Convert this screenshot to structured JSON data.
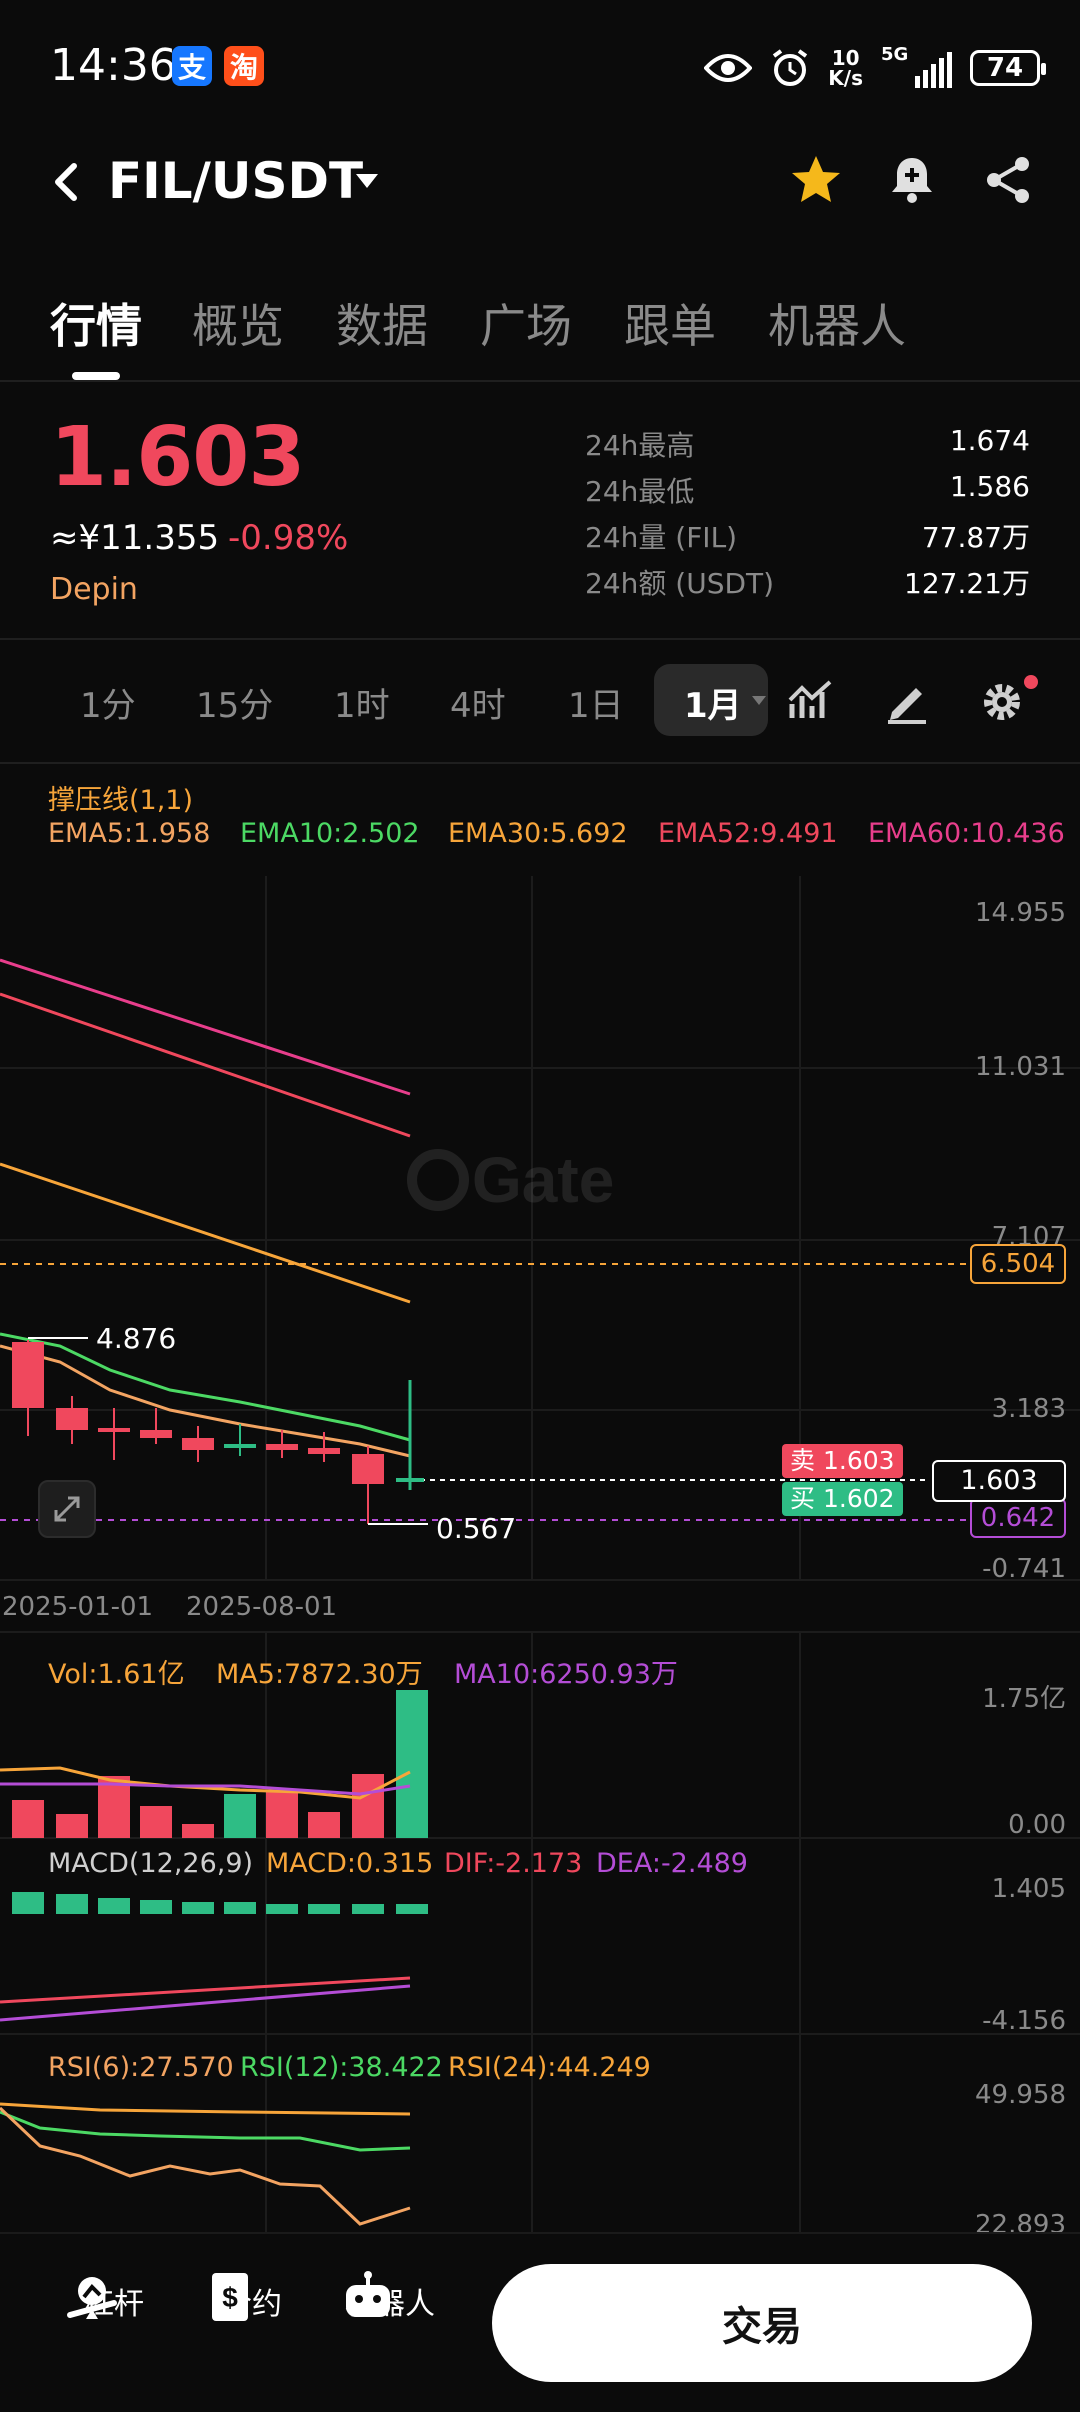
{
  "status_bar": {
    "time": "14:36",
    "net_speed_top": "10",
    "net_speed_bottom": "K/s",
    "network": "5G",
    "battery": "74"
  },
  "header": {
    "pair": "FIL/USDT"
  },
  "tabs": [
    "行情",
    "概览",
    "数据",
    "广场",
    "跟单",
    "机器人"
  ],
  "ticker": {
    "price": "1.603",
    "fiat": "≈¥11.355",
    "change": "-0.98%",
    "tag": "Depin",
    "stats": [
      {
        "label": "24h最高",
        "value": "1.674"
      },
      {
        "label": "24h最低",
        "value": "1.586"
      },
      {
        "label": "24h量 (FIL)",
        "value": "77.87万"
      },
      {
        "label": "24h额 (USDT)",
        "value": "127.21万"
      }
    ]
  },
  "intervals": [
    "1分",
    "15分",
    "1时",
    "4时",
    "1日"
  ],
  "interval_active": "1月",
  "main_chart": {
    "indicator_title": "撑压线(1,1)",
    "ema": [
      {
        "label": "EMA5:1.958",
        "color": "#f3a462"
      },
      {
        "label": "EMA10:2.502",
        "color": "#4cd964"
      },
      {
        "label": "EMA30:5.692",
        "color": "#f7a53a"
      },
      {
        "label": "EMA52:9.491",
        "color": "#f0485d"
      },
      {
        "label": "EMA60:10.436",
        "color": "#e83e8c"
      }
    ],
    "y_ticks": [
      "14.955",
      "11.031",
      "7.107",
      "3.183",
      "-0.741"
    ],
    "x_ticks": [
      "2025-01-01",
      "2025-08-01"
    ],
    "high_marker": "4.876",
    "low_marker": "0.567",
    "resistance_label": "6.504",
    "support_label": "0.642",
    "last_price_label": "1.603",
    "ask": {
      "label": "卖",
      "value": "1.603"
    },
    "bid": {
      "label": "买",
      "value": "1.602"
    },
    "watermark": "Gate"
  },
  "volume_panel": {
    "vol": "Vol:1.61亿",
    "ma5": "MA5:7872.30万",
    "ma10": "MA10:6250.93万",
    "y_top": "1.75亿",
    "y_bottom": "0.00"
  },
  "macd_panel": {
    "title": "MACD(12,26,9)",
    "macd": "MACD:0.315",
    "dif": "DIF:-2.173",
    "dea": "DEA:-2.489",
    "y_top": "1.405",
    "y_bottom": "-4.156"
  },
  "rsi_panel": {
    "rsi6": "RSI(6):27.570",
    "rsi12": "RSI(12):38.422",
    "rsi24": "RSI(24):44.249",
    "y_top": "49.958",
    "y_bottom": "22.893"
  },
  "bottom_nav": {
    "leverage": "杠杆",
    "contract": "合约",
    "robot": "机器人",
    "trade": "交易"
  },
  "colors": {
    "up": "#2ebd85",
    "down": "#f0485d",
    "accent": "#f7a53a"
  }
}
